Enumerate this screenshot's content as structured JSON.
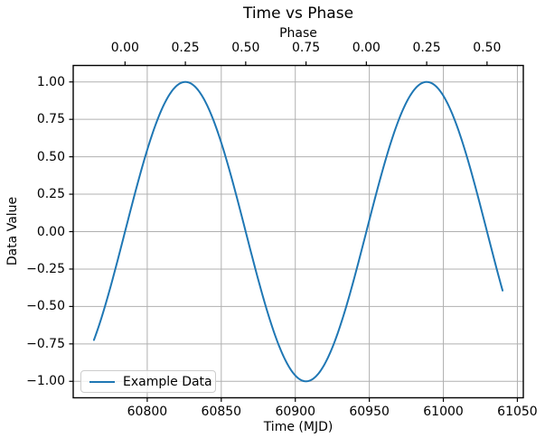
{
  "chart_data": {
    "type": "line",
    "title": "Time vs Phase",
    "xlabel": "Time (MJD)",
    "ylabel": "Data Value",
    "top_axis_label": "Phase",
    "grid": true,
    "legend": {
      "entries": [
        "Example Data"
      ],
      "position": "lower left"
    },
    "colors": {
      "line": "#1f77b4",
      "grid": "#b0b0b0",
      "spine": "#000000",
      "text": "#000000",
      "legend_border": "#cccccc"
    },
    "xlim": [
      60750,
      61054
    ],
    "ylim": [
      -1.11,
      1.11
    ],
    "x_ticks": [
      {
        "value": 60800,
        "label": "60800"
      },
      {
        "value": 60850,
        "label": "60850"
      },
      {
        "value": 60900,
        "label": "60900"
      },
      {
        "value": 60950,
        "label": "60950"
      },
      {
        "value": 61000,
        "label": "61000"
      },
      {
        "value": 61050,
        "label": "61050"
      }
    ],
    "y_ticks": [
      {
        "value": 1.0,
        "label": "1.00"
      },
      {
        "value": 0.75,
        "label": "0.75"
      },
      {
        "value": 0.5,
        "label": "0.50"
      },
      {
        "value": 0.25,
        "label": "0.25"
      },
      {
        "value": 0.0,
        "label": "0.00"
      },
      {
        "value": -0.25,
        "label": "−0.25"
      },
      {
        "value": -0.5,
        "label": "−0.50"
      },
      {
        "value": -0.75,
        "label": "−0.75"
      },
      {
        "value": -1.0,
        "label": "−1.00"
      }
    ],
    "top_ticks": [
      {
        "time_mjd": 60785.0,
        "label": "0.00"
      },
      {
        "time_mjd": 60825.75,
        "label": "0.25"
      },
      {
        "time_mjd": 60866.5,
        "label": "0.50"
      },
      {
        "time_mjd": 60907.25,
        "label": "0.75"
      },
      {
        "time_mjd": 60948.0,
        "label": "0.00"
      },
      {
        "time_mjd": 60988.75,
        "label": "0.25"
      },
      {
        "time_mjd": 61029.5,
        "label": "0.50"
      }
    ],
    "series": [
      {
        "name": "Example Data",
        "model": "sine",
        "formula": "y = amplitude * sin(2*pi*(t - phase_zero_mjd)/period_days)",
        "amplitude": 1.0,
        "period_days": 163,
        "phase_zero_mjd": 60785,
        "t_start_mjd": 60764,
        "t_end_mjd": 61040,
        "points": [
          [
            60764,
            -0.72
          ],
          [
            60780,
            -0.19
          ],
          [
            60800,
            0.55
          ],
          [
            60820,
            0.98
          ],
          [
            60840,
            0.85
          ],
          [
            60860,
            0.25
          ],
          [
            60880,
            -0.5
          ],
          [
            60900,
            -0.96
          ],
          [
            60920,
            -0.88
          ],
          [
            60940,
            -0.3
          ],
          [
            60960,
            0.45
          ],
          [
            60980,
            0.94
          ],
          [
            61000,
            0.91
          ],
          [
            61020,
            0.36
          ],
          [
            61040,
            -0.4
          ]
        ]
      }
    ]
  }
}
